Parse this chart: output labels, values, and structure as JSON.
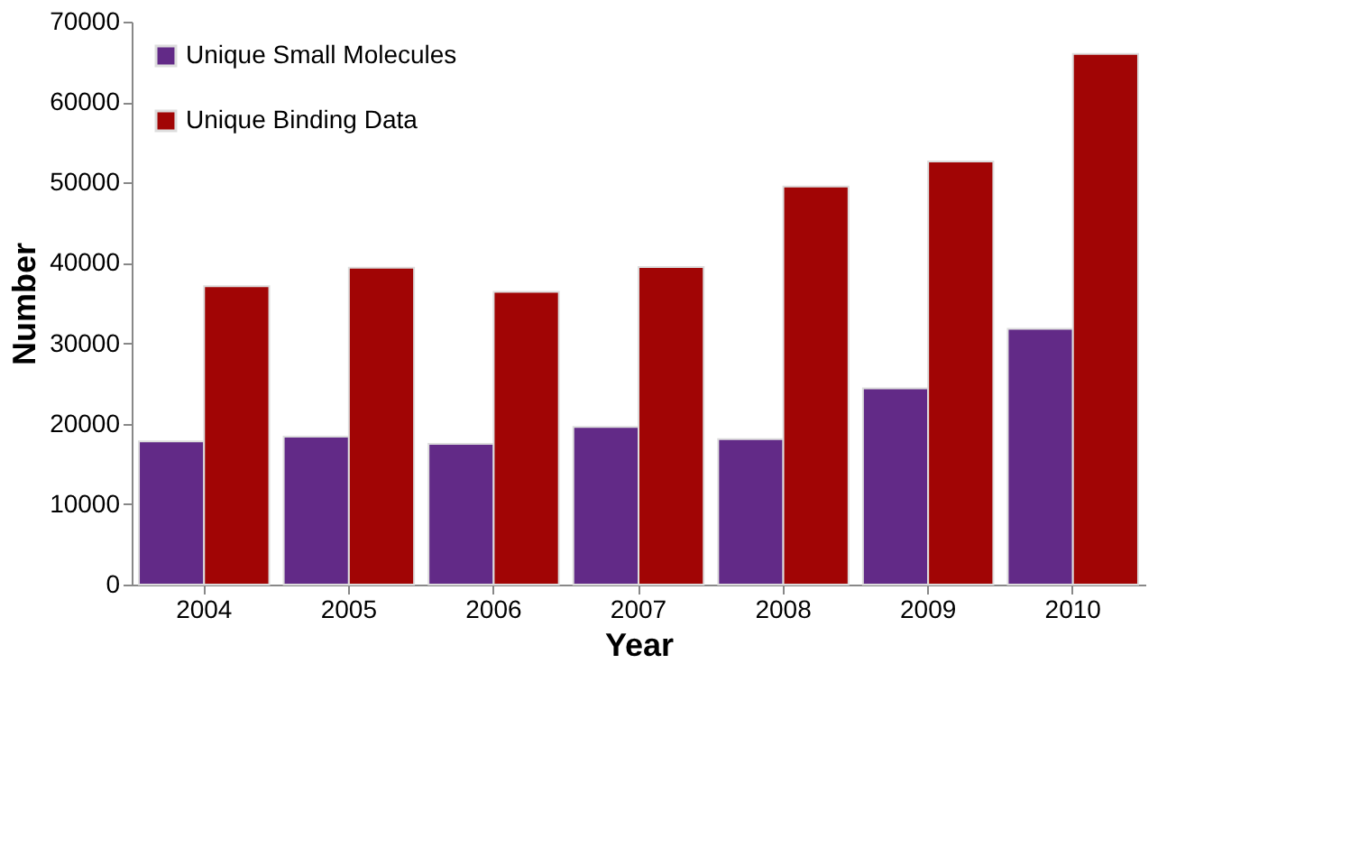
{
  "chart_data": {
    "type": "bar",
    "xlabel": "Year",
    "ylabel": "Number",
    "categories": [
      "2004",
      "2005",
      "2006",
      "2007",
      "2008",
      "2009",
      "2010"
    ],
    "series": [
      {
        "name": "Unique Small Molecules",
        "color": "#622a87",
        "values": [
          17800,
          18400,
          17500,
          19600,
          18100,
          24400,
          31800
        ]
      },
      {
        "name": "Unique Binding Data",
        "color": "#a10505",
        "values": [
          37100,
          39400,
          36400,
          39500,
          49500,
          52600,
          66000
        ]
      }
    ],
    "ylim": [
      0,
      70000
    ],
    "yticks": [
      0,
      10000,
      20000,
      30000,
      40000,
      50000,
      60000,
      70000
    ],
    "grid": false,
    "legend": "top left"
  }
}
